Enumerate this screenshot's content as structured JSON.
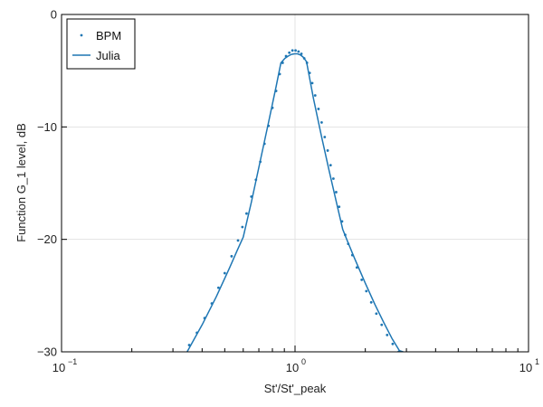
{
  "chart_data": {
    "type": "line",
    "xlabel": "St'/St'_peak",
    "ylabel": "Function G_1 level, dB",
    "xscale": "log",
    "xlim": [
      0.1,
      10
    ],
    "ylim": [
      -30,
      0
    ],
    "x_ticks": [
      {
        "value": 0.1,
        "base": "10",
        "exp": "−1"
      },
      {
        "value": 1,
        "base": "10",
        "exp": "0"
      },
      {
        "value": 10,
        "base": "10",
        "exp": "1"
      }
    ],
    "y_ticks": [
      {
        "value": 0,
        "label": "0"
      },
      {
        "value": -10,
        "label": "−10"
      },
      {
        "value": -20,
        "label": "−20"
      },
      {
        "value": -30,
        "label": "−30"
      }
    ],
    "grid": true,
    "legend_position": "top-left",
    "series": [
      {
        "name": "BPM",
        "style": "dots",
        "color": "#1f77b4",
        "x": [
          0.352,
          0.38,
          0.41,
          0.44,
          0.47,
          0.5,
          0.535,
          0.57,
          0.595,
          0.62,
          0.65,
          0.68,
          0.71,
          0.74,
          0.77,
          0.8,
          0.83,
          0.86,
          0.885,
          0.915,
          0.945,
          0.975,
          1.005,
          1.035,
          1.065,
          1.095,
          1.125,
          1.155,
          1.185,
          1.22,
          1.26,
          1.3,
          1.34,
          1.38,
          1.42,
          1.46,
          1.5,
          1.545,
          1.59,
          1.64,
          1.69,
          1.76,
          1.84,
          1.93,
          2.02,
          2.12,
          2.23,
          2.35,
          2.48,
          2.62,
          2.78,
          2.95
        ],
        "y": [
          -29.4,
          -28.3,
          -27.0,
          -25.7,
          -24.3,
          -23.0,
          -21.5,
          -20.1,
          -18.9,
          -17.7,
          -16.2,
          -14.7,
          -13.1,
          -11.5,
          -9.9,
          -8.3,
          -6.8,
          -5.3,
          -4.3,
          -3.7,
          -3.4,
          -3.2,
          -3.2,
          -3.3,
          -3.5,
          -3.9,
          -4.3,
          -5.2,
          -6.1,
          -7.2,
          -8.4,
          -9.6,
          -10.9,
          -12.1,
          -13.4,
          -14.6,
          -15.8,
          -17.1,
          -18.4,
          -19.6,
          -20.4,
          -21.4,
          -22.5,
          -23.6,
          -24.6,
          -25.6,
          -26.6,
          -27.6,
          -28.5,
          -29.3,
          -30.0,
          -30.5
        ]
      },
      {
        "name": "Julia",
        "style": "line",
        "color": "#1f77b4",
        "x": [
          0.345,
          0.4,
          0.46,
          0.52,
          0.565,
          0.6,
          0.65,
          0.71,
          0.77,
          0.83,
          0.87,
          0.905,
          0.935,
          0.965,
          0.995,
          1.025,
          1.055,
          1.085,
          1.12,
          1.2,
          1.3,
          1.4,
          1.5,
          1.6,
          1.68,
          1.8,
          2.0,
          2.2,
          2.4,
          2.6,
          2.8,
          3.0
        ],
        "y": [
          -30.0,
          -27.6,
          -25.1,
          -22.7,
          -21.0,
          -19.8,
          -16.7,
          -13.0,
          -9.6,
          -6.4,
          -4.3,
          -3.9,
          -3.7,
          -3.55,
          -3.5,
          -3.5,
          -3.6,
          -3.8,
          -4.2,
          -7.5,
          -10.9,
          -13.9,
          -16.6,
          -19.1,
          -20.2,
          -21.7,
          -23.9,
          -25.8,
          -27.4,
          -28.8,
          -29.9,
          -30.1
        ]
      }
    ]
  }
}
